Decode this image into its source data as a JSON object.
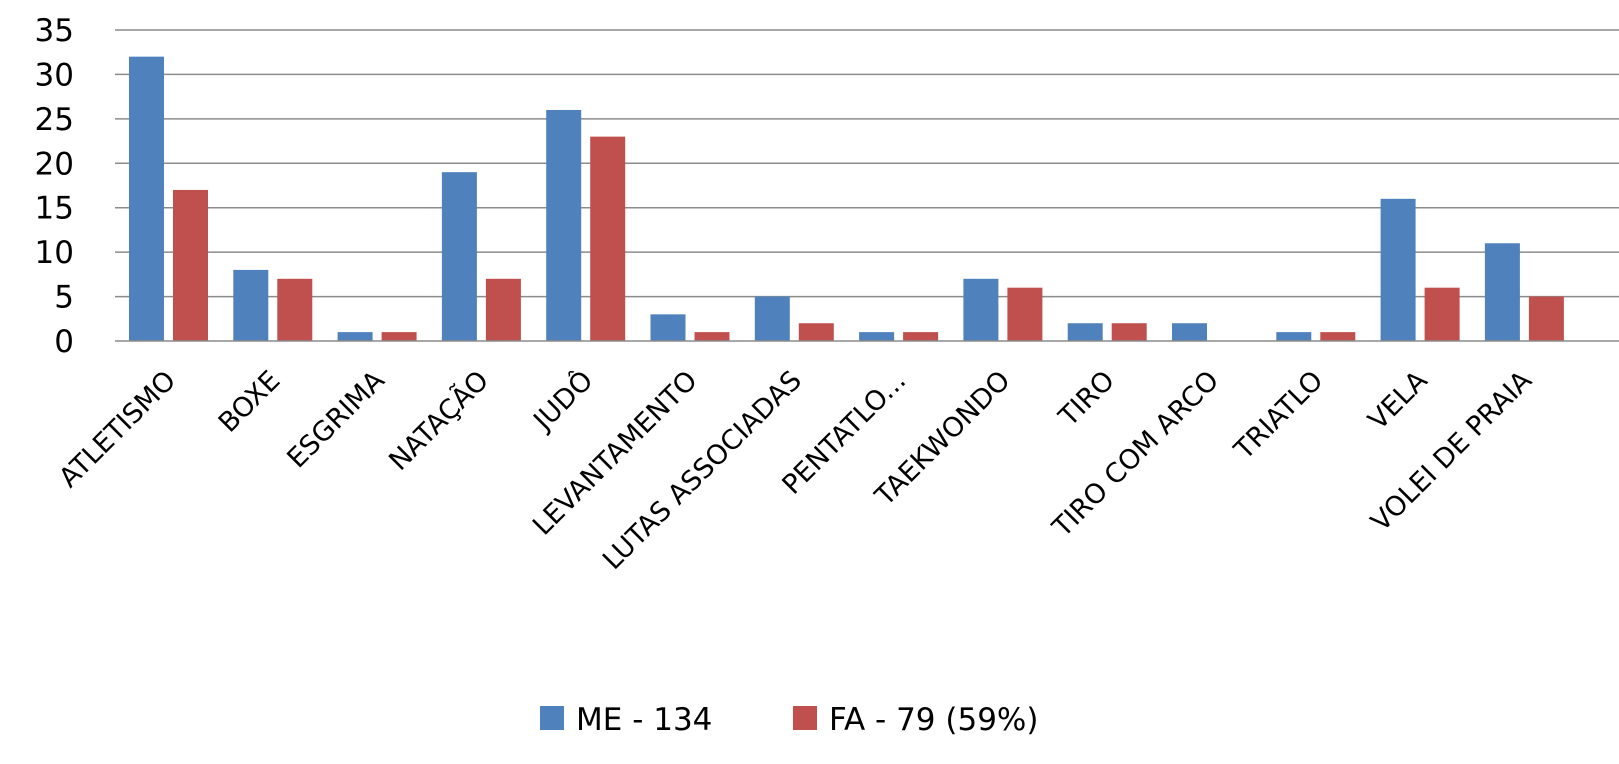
{
  "chart_data": {
    "type": "bar",
    "title": "",
    "xlabel": "",
    "ylabel": "",
    "ylim": [
      0,
      35
    ],
    "yticks": [
      0,
      5,
      10,
      15,
      20,
      25,
      30,
      35
    ],
    "grid": true,
    "legend_position": "bottom",
    "categories": [
      "ATLETISMO",
      "BOXE",
      "ESGRIMA",
      "NATAÇÃO",
      "JUDÔ",
      "LEVANTAMENTO",
      "LUTAS ASSOCIADAS",
      "PENTATLO...",
      "TAEKWONDO",
      "TIRO",
      "TIRO COM ARCO",
      "TRIATLO",
      "VELA",
      "VOLEI DE PRAIA"
    ],
    "series": [
      {
        "name": "ME - 134",
        "color": "#4f81bd",
        "values": [
          32,
          8,
          1,
          19,
          26,
          3,
          5,
          1,
          7,
          2,
          2,
          1,
          16,
          11
        ]
      },
      {
        "name": "FA - 79 (59%)",
        "color": "#c0504d",
        "values": [
          17,
          7,
          1,
          7,
          23,
          1,
          2,
          1,
          6,
          2,
          0,
          1,
          6,
          5
        ]
      }
    ]
  }
}
